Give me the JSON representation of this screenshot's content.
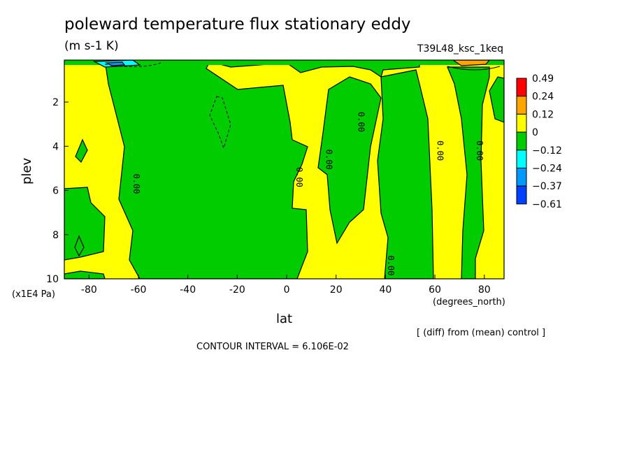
{
  "chart_data": {
    "type": "heatmap",
    "title": "poleward temperature flux stationary eddy",
    "units": "(m s-1 K)",
    "run_id": "T39L48_ksc_1keq",
    "xlabel": "lat",
    "x_units": "(degrees_north)",
    "ylabel": "plev",
    "y_units": "(x1E4 Pa)",
    "xlim": [
      -90,
      88
    ],
    "ylim": [
      10,
      0.1
    ],
    "x_ticks": [
      -80,
      -60,
      -40,
      -20,
      0,
      20,
      40,
      60,
      80
    ],
    "y_ticks": [
      2,
      4,
      6,
      8,
      10
    ],
    "colorbar": {
      "levels": [
        "0.49",
        "0.24",
        "0.12",
        "0",
        "−0.12",
        "−0.24",
        "−0.37",
        "−0.61"
      ],
      "colors": [
        "#ff0000",
        "#ffa500",
        "#ffff00",
        "#00cc00",
        "#00ffff",
        "#0099ff",
        "#0040ff"
      ]
    },
    "contour_labels": [
      "0.00",
      "0.00",
      "0.00",
      "0.00",
      "0.00",
      "0.00",
      "0.00",
      "0.00"
    ],
    "note": "[ (diff) from (mean) control ]",
    "contour_interval": "CONTOUR INTERVAL = 6.106E-02"
  }
}
